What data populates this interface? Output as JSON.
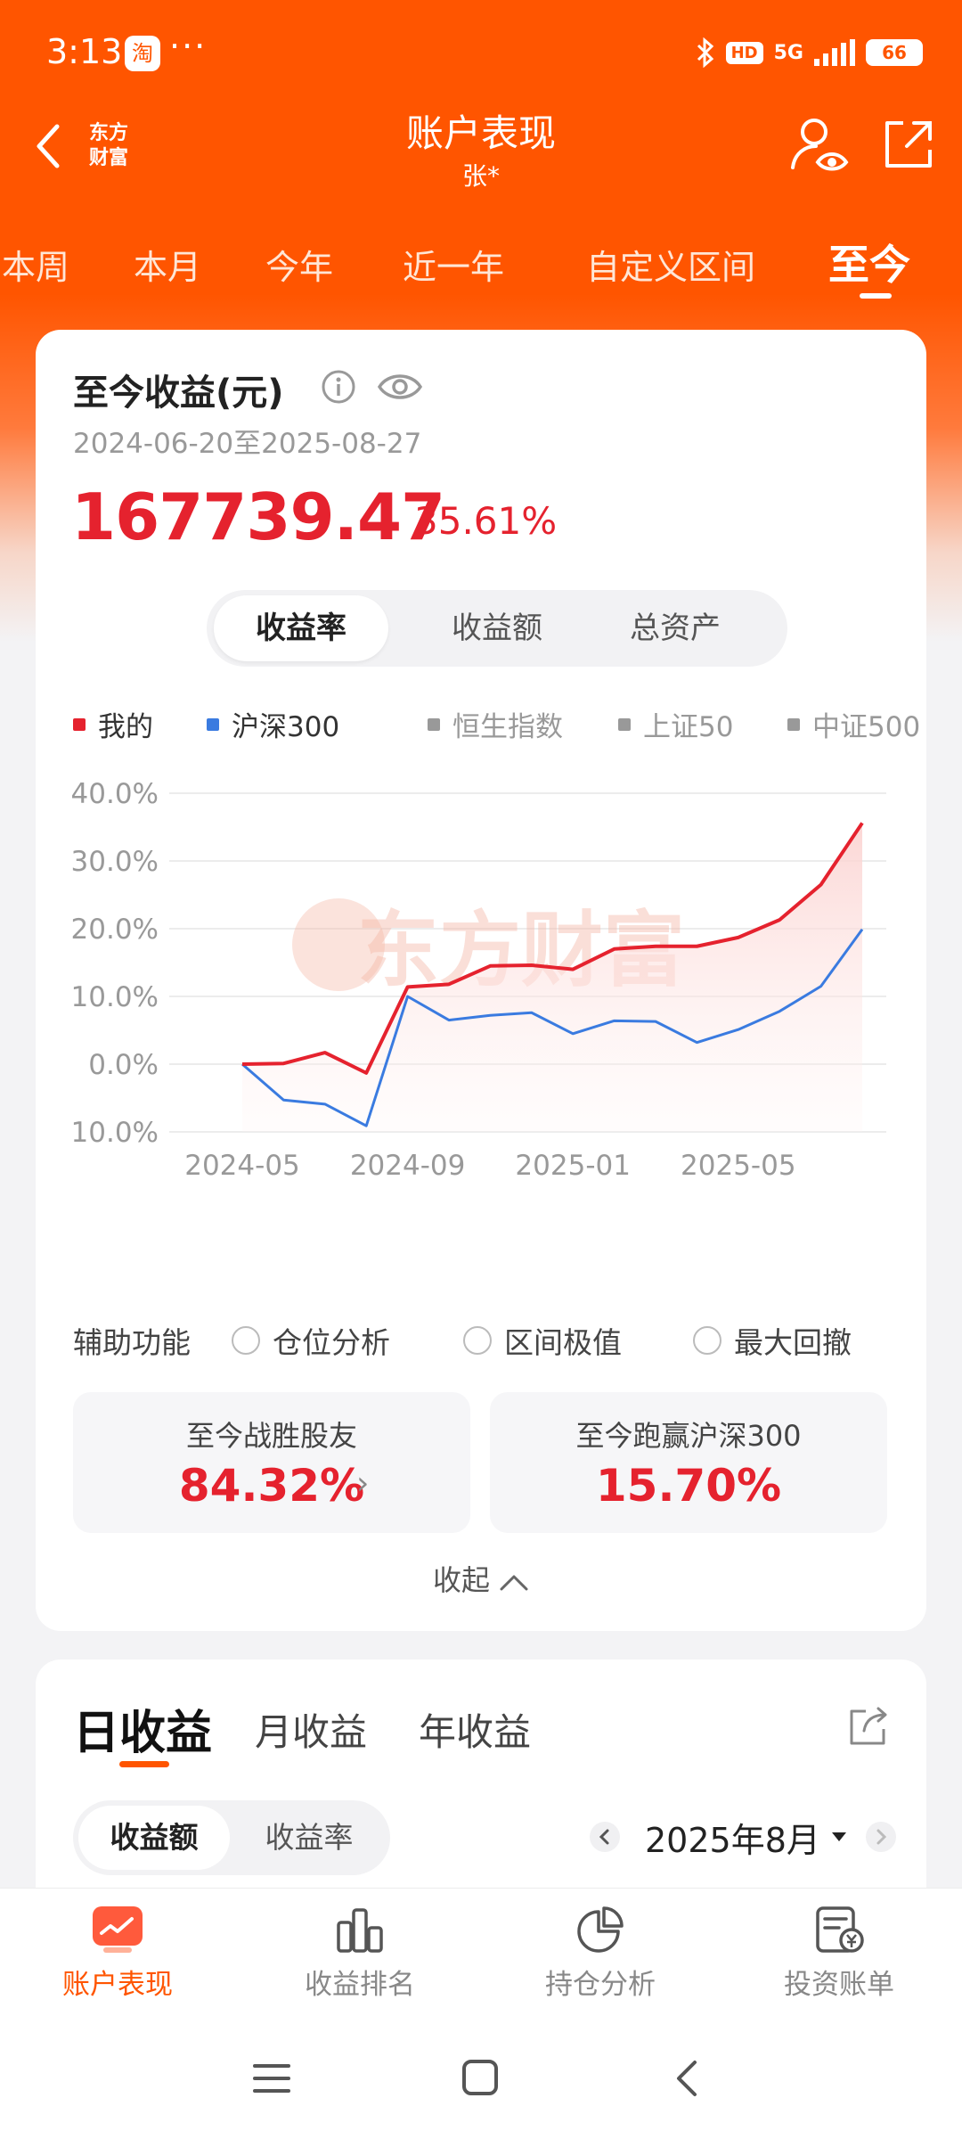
{
  "status_bar": {
    "time": "3:13",
    "app_icon_text": "淘",
    "more": "···",
    "network": "5G",
    "hd": "HD",
    "battery": "66"
  },
  "header": {
    "logo": "东方财富",
    "title": "账户表现",
    "subtitle": "张*"
  },
  "period_tabs": [
    "本周",
    "本月",
    "今年",
    "近一年",
    "自定义区间",
    "至今"
  ],
  "active_period": "至今",
  "summary": {
    "title": "至今收益(元)",
    "date_range": "2024-06-20至2025-08-27",
    "profit": "167739.47",
    "profit_rate": "35.61%"
  },
  "metric_tabs": [
    "收益率",
    "收益额",
    "总资产"
  ],
  "active_metric": "收益率",
  "legend": [
    {
      "name": "我的",
      "color": "#e5222e",
      "active": true
    },
    {
      "name": "沪深300",
      "color": "#3a7be0",
      "active": true
    },
    {
      "name": "恒生指数",
      "color": "#999999",
      "active": false
    },
    {
      "name": "上证50",
      "color": "#999999",
      "active": false
    },
    {
      "name": "中证500",
      "color": "#999999",
      "active": false
    }
  ],
  "watermark": "东方财富",
  "chart_data": {
    "type": "line",
    "x_ticks": [
      "2024-05",
      "2024-09",
      "2025-01",
      "2025-05"
    ],
    "y_ticks": [
      "40.0%",
      "30.0%",
      "20.0%",
      "10.0%",
      "0.0%",
      "-10.0%"
    ],
    "ylim": [
      -10,
      40
    ],
    "x": [
      "2024-05",
      "2024-06",
      "2024-07",
      "2024-08",
      "2024-09",
      "2024-10",
      "2024-11",
      "2024-12",
      "2025-01",
      "2025-02",
      "2025-03",
      "2025-04",
      "2025-05",
      "2025-06",
      "2025-07",
      "2025-08"
    ],
    "series": [
      {
        "name": "我的",
        "color": "#e5222e",
        "values": [
          0.0,
          0.1,
          1.7,
          -1.3,
          11.4,
          11.8,
          14.5,
          14.6,
          14.0,
          17.0,
          17.4,
          17.4,
          18.7,
          21.3,
          26.5,
          35.6
        ]
      },
      {
        "name": "沪深300",
        "color": "#3a7be0",
        "values": [
          0.0,
          -5.3,
          -5.9,
          -9.1,
          10.0,
          6.5,
          7.2,
          7.6,
          4.5,
          6.4,
          6.3,
          3.2,
          5.1,
          7.8,
          11.5,
          19.9
        ]
      }
    ],
    "grid": true
  },
  "aux": {
    "label": "辅助功能",
    "options": [
      "仓位分析",
      "区间极值",
      "最大回撤"
    ]
  },
  "stats": [
    {
      "label": "至今战胜股友",
      "value": "84.32%"
    },
    {
      "label": "至今跑赢沪深300",
      "value": "15.70%"
    }
  ],
  "collapse_label": "收起",
  "daily": {
    "tabs": [
      "日收益",
      "月收益",
      "年收益"
    ],
    "active": "日收益",
    "sub_tabs": [
      "收益额",
      "收益率"
    ],
    "active_sub": "收益额",
    "month": "2025年8月"
  },
  "bottom_nav": [
    "账户表现",
    "收益排名",
    "持仓分析",
    "投资账单"
  ],
  "active_nav": "账户表现"
}
